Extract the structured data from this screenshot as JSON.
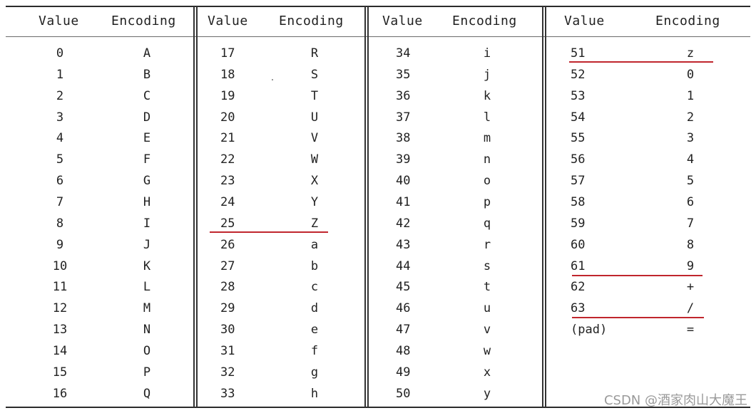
{
  "table": {
    "header": {
      "value_label": "Value",
      "encoding_label": "Encoding"
    },
    "groups": [
      [
        {
          "value": "0",
          "encoding": "A"
        },
        {
          "value": "1",
          "encoding": "B"
        },
        {
          "value": "2",
          "encoding": "C"
        },
        {
          "value": "3",
          "encoding": "D"
        },
        {
          "value": "4",
          "encoding": "E"
        },
        {
          "value": "5",
          "encoding": "F"
        },
        {
          "value": "6",
          "encoding": "G"
        },
        {
          "value": "7",
          "encoding": "H"
        },
        {
          "value": "8",
          "encoding": "I"
        },
        {
          "value": "9",
          "encoding": "J"
        },
        {
          "value": "10",
          "encoding": "K"
        },
        {
          "value": "11",
          "encoding": "L"
        },
        {
          "value": "12",
          "encoding": "M"
        },
        {
          "value": "13",
          "encoding": "N"
        },
        {
          "value": "14",
          "encoding": "O"
        },
        {
          "value": "15",
          "encoding": "P"
        },
        {
          "value": "16",
          "encoding": "Q"
        }
      ],
      [
        {
          "value": "17",
          "encoding": "R"
        },
        {
          "value": "18",
          "encoding": "S"
        },
        {
          "value": "19",
          "encoding": "T"
        },
        {
          "value": "20",
          "encoding": "U"
        },
        {
          "value": "21",
          "encoding": "V"
        },
        {
          "value": "22",
          "encoding": "W"
        },
        {
          "value": "23",
          "encoding": "X"
        },
        {
          "value": "24",
          "encoding": "Y"
        },
        {
          "value": "25",
          "encoding": "Z"
        },
        {
          "value": "26",
          "encoding": "a"
        },
        {
          "value": "27",
          "encoding": "b"
        },
        {
          "value": "28",
          "encoding": "c"
        },
        {
          "value": "29",
          "encoding": "d"
        },
        {
          "value": "30",
          "encoding": "e"
        },
        {
          "value": "31",
          "encoding": "f"
        },
        {
          "value": "32",
          "encoding": "g"
        },
        {
          "value": "33",
          "encoding": "h"
        }
      ],
      [
        {
          "value": "34",
          "encoding": "i"
        },
        {
          "value": "35",
          "encoding": "j"
        },
        {
          "value": "36",
          "encoding": "k"
        },
        {
          "value": "37",
          "encoding": "l"
        },
        {
          "value": "38",
          "encoding": "m"
        },
        {
          "value": "39",
          "encoding": "n"
        },
        {
          "value": "40",
          "encoding": "o"
        },
        {
          "value": "41",
          "encoding": "p"
        },
        {
          "value": "42",
          "encoding": "q"
        },
        {
          "value": "43",
          "encoding": "r"
        },
        {
          "value": "44",
          "encoding": "s"
        },
        {
          "value": "45",
          "encoding": "t"
        },
        {
          "value": "46",
          "encoding": "u"
        },
        {
          "value": "47",
          "encoding": "v"
        },
        {
          "value": "48",
          "encoding": "w"
        },
        {
          "value": "49",
          "encoding": "x"
        },
        {
          "value": "50",
          "encoding": "y"
        }
      ],
      [
        {
          "value": "51",
          "encoding": "z"
        },
        {
          "value": "52",
          "encoding": "0"
        },
        {
          "value": "53",
          "encoding": "1"
        },
        {
          "value": "54",
          "encoding": "2"
        },
        {
          "value": "55",
          "encoding": "3"
        },
        {
          "value": "56",
          "encoding": "4"
        },
        {
          "value": "57",
          "encoding": "5"
        },
        {
          "value": "58",
          "encoding": "6"
        },
        {
          "value": "59",
          "encoding": "7"
        },
        {
          "value": "60",
          "encoding": "8"
        },
        {
          "value": "61",
          "encoding": "9"
        },
        {
          "value": "62",
          "encoding": "+"
        },
        {
          "value": "63",
          "encoding": "/"
        },
        {
          "value": "(pad)",
          "encoding": "="
        }
      ]
    ]
  },
  "watermark": "CSDN @酒家肉山大魔王",
  "colors": {
    "underline": "#c0262d",
    "rule": "#2b2b2b",
    "text": "#222222",
    "watermark": "#9a9a9a"
  }
}
